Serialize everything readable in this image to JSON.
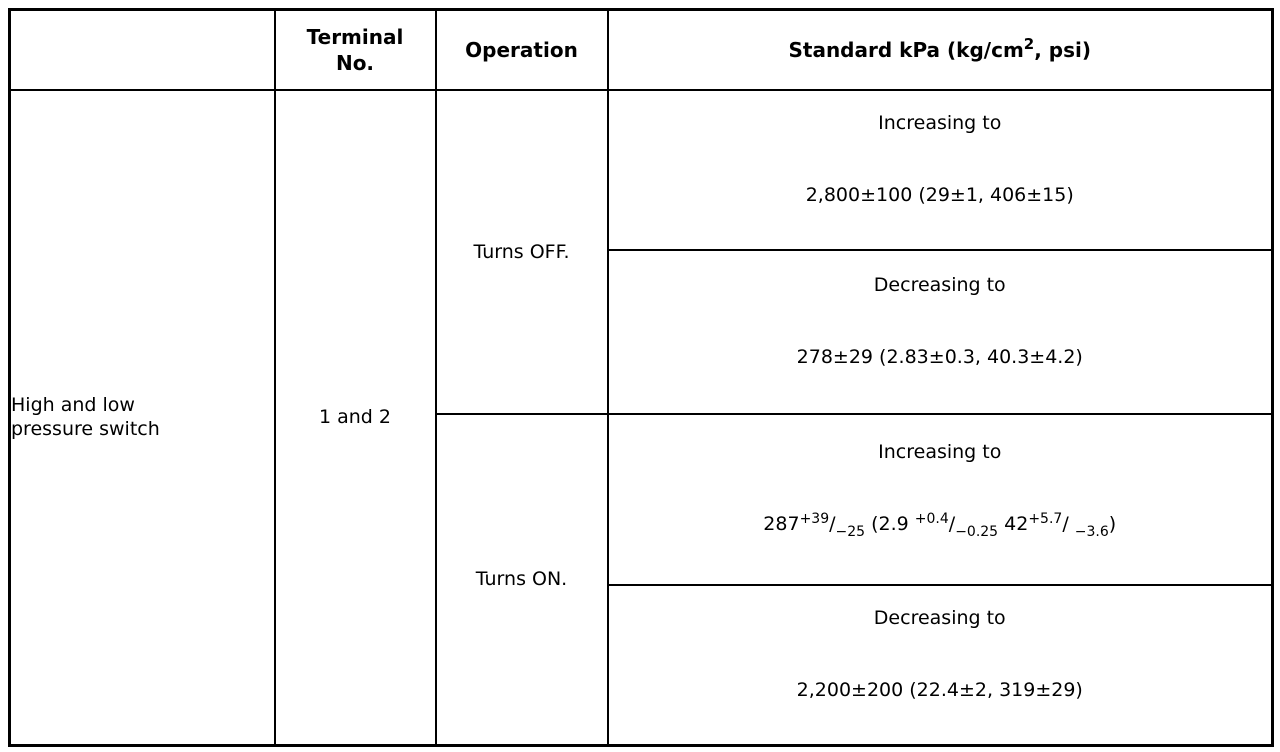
{
  "header": {
    "device": "",
    "terminal": "Terminal\nNo.",
    "operation": "Operation",
    "standard_parts": [
      {
        "style": "n",
        "text": "Standard kPa (kg/cm"
      },
      {
        "style": "sup",
        "text": "2"
      },
      {
        "style": "n",
        "text": ", psi)"
      }
    ]
  },
  "body": {
    "device": "High and low\npressure switch",
    "terminal": "1 and 2",
    "operations": [
      {
        "label": "Turns OFF.",
        "conditions": [
          {
            "direction": "Increasing to",
            "value_parts": [
              {
                "style": "n",
                "text": "2,800±100 (29±1, 406±15)"
              }
            ]
          },
          {
            "direction": "Decreasing to",
            "value_parts": [
              {
                "style": "n",
                "text": "278±29 (2.83±0.3, 40.3±4.2)"
              }
            ]
          }
        ]
      },
      {
        "label": "Turns ON.",
        "conditions": [
          {
            "direction": "Increasing to",
            "value_parts": [
              {
                "style": "n",
                "text": "287"
              },
              {
                "style": "sup",
                "text": "+39"
              },
              {
                "style": "n",
                "text": "/"
              },
              {
                "style": "sub",
                "text": "−25"
              },
              {
                "style": "n",
                "text": " (2.9 "
              },
              {
                "style": "sup",
                "text": "+0.4"
              },
              {
                "style": "n",
                "text": "/"
              },
              {
                "style": "sub",
                "text": "−0.25"
              },
              {
                "style": "n",
                "text": " 42"
              },
              {
                "style": "sup",
                "text": "+5.7"
              },
              {
                "style": "n",
                "text": "/ "
              },
              {
                "style": "sub",
                "text": "−3.6"
              },
              {
                "style": "n",
                "text": ")"
              }
            ]
          },
          {
            "direction": "Decreasing to",
            "value_parts": [
              {
                "style": "n",
                "text": "2,200±200 (22.4±2, 319±29)"
              }
            ]
          }
        ]
      }
    ]
  }
}
